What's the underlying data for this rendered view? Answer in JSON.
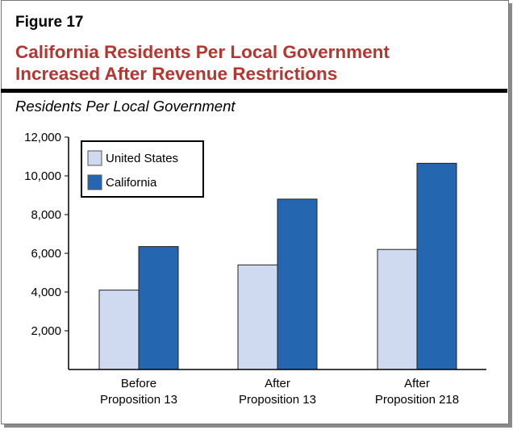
{
  "figure_label": "Figure 17",
  "title_lines": [
    "California Residents Per Local Government",
    "Increased After Revenue Restrictions"
  ],
  "colors": {
    "title": "#b5352f",
    "united_states": "#cfd9f0",
    "california": "#2566b0"
  },
  "chart_data": {
    "type": "bar",
    "title": "California Residents Per Local Government Increased After Revenue Restrictions",
    "ylabel": "Residents Per Local Government",
    "xlabel": "",
    "categories": [
      [
        "Before",
        "Proposition 13"
      ],
      [
        "After",
        "Proposition 13"
      ],
      [
        "After",
        "Proposition 218"
      ]
    ],
    "series": [
      {
        "name": "United States",
        "values": [
          4100,
          5400,
          6200
        ]
      },
      {
        "name": "California",
        "values": [
          6350,
          8800,
          10650
        ]
      }
    ],
    "ylim": [
      0,
      12000
    ],
    "yticks": [
      2000,
      4000,
      6000,
      8000,
      10000,
      12000
    ],
    "ytick_labels": [
      "2,000",
      "4,000",
      "6,000",
      "8,000",
      "10,000",
      "12,000"
    ],
    "grid": false,
    "legend": "top-left"
  }
}
